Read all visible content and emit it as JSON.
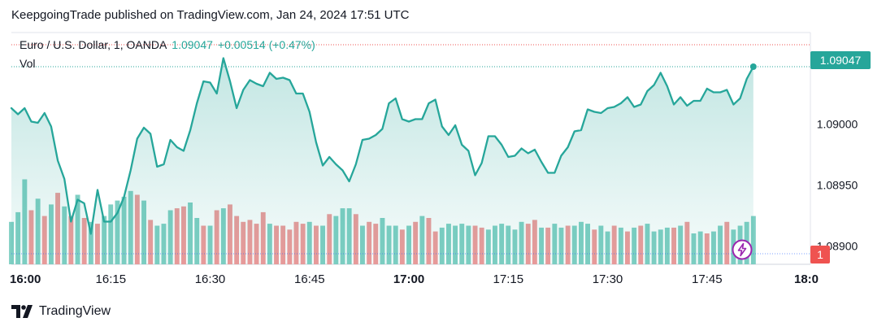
{
  "header": {
    "published": "KeepgoingTrade published on TradingView.com, Jan 24, 2024 17:51 UTC"
  },
  "legend": {
    "symbol": "Euro / U.S. Dollar, 1, OANDA",
    "value": "1.09047",
    "change": "+0.00514 (+0.47%)",
    "vol_label": "Vol"
  },
  "branding": {
    "name": "TradingView"
  },
  "price_tag": "1.09047",
  "volume_tag": "1",
  "colors": {
    "line": "#26a69a",
    "up_volume": "#7fcfc3",
    "down_volume": "#ef9a9a",
    "price_tag_bg": "#26a69a",
    "volume_tag_bg": "#ef5350",
    "alert_icon": "#9c27b0"
  },
  "icons": {
    "alert": "lightning-bolt-icon",
    "logo": "tradingview-logo-icon"
  },
  "chart_data": {
    "type": "area",
    "title": "Euro / U.S. Dollar, 1, OANDA",
    "x_ticks": [
      "16:00",
      "16:15",
      "16:30",
      "16:45",
      "17:00",
      "17:15",
      "17:30",
      "17:45",
      "18:0"
    ],
    "y_ticks": [
      "1.09000",
      "1.08950",
      "1.08900"
    ],
    "y_tick_values": [
      1.09,
      1.0895,
      1.089
    ],
    "x_range_minutes": [
      0,
      120
    ],
    "y_range": [
      1.08885,
      1.09075
    ],
    "close_series": {
      "minutes": [
        0,
        1,
        2,
        3,
        4,
        5,
        6,
        7,
        8,
        9,
        10,
        11,
        12,
        13,
        14,
        15,
        16,
        17,
        18,
        19,
        20,
        21,
        22,
        23,
        24,
        25,
        26,
        27,
        28,
        29,
        30,
        31,
        32,
        33,
        34,
        35,
        36,
        37,
        38,
        39,
        40,
        41,
        42,
        43,
        44,
        45,
        46,
        47,
        48,
        49,
        50,
        51,
        52,
        53,
        54,
        55,
        56,
        57,
        58,
        59,
        60,
        61,
        62,
        63,
        64,
        65,
        66,
        67,
        68,
        69,
        70,
        71,
        72,
        73,
        74,
        75,
        76,
        77,
        78,
        79,
        80,
        81,
        82,
        83,
        84,
        85,
        86,
        87,
        88,
        89,
        90,
        91,
        92,
        93,
        94,
        95,
        96,
        97,
        98,
        99,
        100,
        101,
        102,
        103,
        104,
        105,
        106,
        107,
        108,
        109,
        110,
        111,
        112
      ],
      "values": [
        1.09013,
        1.09008,
        1.09013,
        1.09002,
        1.09001,
        1.09009,
        1.08998,
        1.0897,
        1.08955,
        1.0892,
        1.08938,
        1.08935,
        1.0891,
        1.08946,
        1.0892,
        1.0892,
        1.08927,
        1.0894,
        1.08962,
        1.08988,
        1.08997,
        1.08992,
        1.08965,
        1.08967,
        1.08987,
        1.08981,
        1.08978,
        1.08995,
        1.09017,
        1.09035,
        1.09034,
        1.09025,
        1.09054,
        1.09035,
        1.09013,
        1.09028,
        1.09036,
        1.09033,
        1.09031,
        1.09042,
        1.09037,
        1.09038,
        1.09036,
        1.09025,
        1.09025,
        1.0901,
        1.08985,
        1.08966,
        1.08973,
        1.08967,
        1.08962,
        1.08953,
        1.08967,
        1.08987,
        1.08988,
        1.08991,
        1.08996,
        1.09017,
        1.09021,
        1.09004,
        1.09002,
        1.09004,
        1.09004,
        1.09017,
        1.0902,
        1.08998,
        1.08991,
        1.08999,
        1.08983,
        1.08978,
        1.08958,
        1.08968,
        1.0899,
        1.0899,
        1.08983,
        1.08973,
        1.08974,
        1.0898,
        1.08976,
        1.08979,
        1.08969,
        1.0896,
        1.0896,
        1.08974,
        1.08981,
        1.08994,
        1.08995,
        1.09012,
        1.0901,
        1.09009,
        1.09013,
        1.09014,
        1.09017,
        1.09022,
        1.09014,
        1.09016,
        1.09027,
        1.09032,
        1.09042,
        1.09031,
        1.09016,
        1.09022,
        1.09015,
        1.09019,
        1.09019,
        1.09029,
        1.09026,
        1.09026,
        1.09028,
        1.09016,
        1.09021,
        1.09037,
        1.09047,
        1.09052,
        1.09047
      ]
    },
    "volume": {
      "values": [
        22,
        27,
        44,
        28,
        34,
        25,
        31,
        37,
        30,
        25,
        36,
        24,
        22,
        21,
        25,
        31,
        33,
        35,
        38,
        36,
        33,
        23,
        20,
        21,
        28,
        29,
        30,
        32,
        24,
        20,
        20,
        28,
        29,
        31,
        25,
        22,
        23,
        21,
        27,
        21,
        20,
        20,
        18,
        22,
        21,
        22,
        20,
        20,
        26,
        25,
        29,
        29,
        26,
        20,
        22,
        21,
        24,
        20,
        20,
        18,
        20,
        22,
        25,
        24,
        17,
        19,
        21,
        20,
        21,
        20,
        20,
        19,
        18,
        20,
        21,
        20,
        18,
        22,
        21,
        23,
        19,
        19,
        21,
        19,
        20,
        20,
        22,
        21,
        18,
        20,
        17,
        20,
        19,
        17,
        19,
        20,
        21,
        17,
        18,
        19,
        19,
        20,
        22,
        16,
        17,
        16,
        17,
        20,
        22,
        18,
        20,
        22,
        25
      ],
      "up": [
        1,
        1,
        1,
        0,
        1,
        0,
        1,
        0,
        1,
        0,
        1,
        0,
        1,
        0,
        1,
        1,
        1,
        1,
        1,
        0,
        1,
        0,
        1,
        1,
        1,
        0,
        0,
        1,
        1,
        0,
        1,
        0,
        1,
        0,
        0,
        0,
        0,
        0,
        0,
        1,
        0,
        0,
        0,
        0,
        0,
        1,
        0,
        1,
        0,
        1,
        1,
        1,
        0,
        1,
        0,
        0,
        1,
        1,
        1,
        0,
        1,
        0,
        1,
        0,
        0,
        1,
        1,
        1,
        1,
        1,
        0,
        0,
        1,
        1,
        1,
        1,
        1,
        1,
        0,
        0,
        1,
        0,
        1,
        1,
        0,
        1,
        1,
        1,
        0,
        1,
        1,
        0,
        1,
        0,
        1,
        0,
        1,
        1,
        1,
        1,
        0,
        1,
        0,
        1,
        1,
        0,
        1,
        1,
        0,
        1,
        1,
        1,
        1
      ],
      "ylim": [
        0,
        120
      ]
    },
    "grid": false,
    "legend_position": "top-left"
  }
}
